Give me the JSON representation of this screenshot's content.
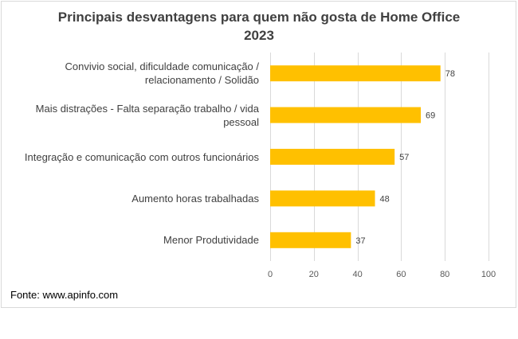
{
  "chart_data": {
    "type": "bar",
    "orientation": "horizontal",
    "title_line1": "Principais desvantagens para quem não gosta de Home Office",
    "title_line2": "2023",
    "categories": [
      [
        "Convivio social, dificuldade comunicação /",
        "relacionamento / Solidão"
      ],
      [
        "Mais distrações - Falta separação trabalho / vida",
        "pessoal"
      ],
      [
        "Integração e comunicação com outros funcionários"
      ],
      [
        "Aumento horas trabalhadas"
      ],
      [
        "Menor Produtividade"
      ]
    ],
    "values": [
      78,
      69,
      57,
      48,
      37
    ],
    "xlim": [
      0,
      100
    ],
    "xticks": [
      0,
      20,
      40,
      60,
      80,
      100
    ],
    "grid": true,
    "legend": "none",
    "bar_color": "#FFC000"
  },
  "source": "Fonte: www.apinfo.com"
}
